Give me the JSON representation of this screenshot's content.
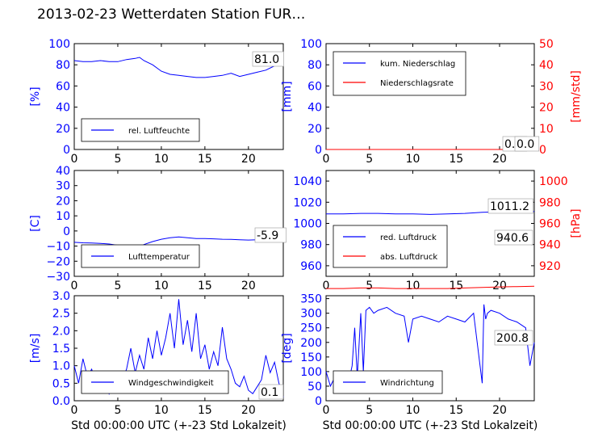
{
  "title": "2013-02-23 Wetterdaten Station FUR…",
  "colors": {
    "blue": "#0000ff",
    "red": "#ff0000",
    "black": "#000000"
  },
  "chart_data": [
    {
      "id": "humidity",
      "type": "line",
      "xlim": [
        0,
        24
      ],
      "xticks": [
        "0",
        "5",
        "10",
        "15",
        "20"
      ],
      "ylim": [
        0,
        100
      ],
      "yticks": [
        "0",
        "20",
        "40",
        "60",
        "80",
        "100"
      ],
      "ylabel": "[%]",
      "legend": [
        "rel. Luftfeuchte"
      ],
      "annotation": "81.0",
      "series": [
        {
          "name": "rel. Luftfeuchte",
          "color": "#0000ff",
          "x": [
            0,
            1,
            2,
            3,
            4,
            5,
            6,
            7,
            7.5,
            8,
            9,
            10,
            11,
            12,
            13,
            14,
            15,
            16,
            17,
            18,
            19,
            20,
            21,
            22,
            23,
            24
          ],
          "y": [
            84,
            83,
            83,
            84,
            83,
            83,
            85,
            86,
            87,
            84,
            80,
            74,
            71,
            70,
            69,
            68,
            68,
            69,
            70,
            72,
            69,
            71,
            73,
            75,
            79,
            81
          ]
        }
      ]
    },
    {
      "id": "precip",
      "type": "line",
      "xlim": [
        0,
        24
      ],
      "xticks": [
        "0",
        "5",
        "10",
        "15",
        "20"
      ],
      "ylim": [
        0,
        100
      ],
      "yticks": [
        "0",
        "20",
        "40",
        "60",
        "80",
        "100"
      ],
      "ylabel": "[mm]",
      "y2lim": [
        0,
        50
      ],
      "y2ticks": [
        "0",
        "10",
        "20",
        "30",
        "40",
        "50"
      ],
      "y2label": "[mm/std]",
      "legend": [
        "kum. Niederschlag",
        "Niederschlagsrate"
      ],
      "annotation": "0.0",
      "annotation2": "0.0",
      "series": [
        {
          "name": "kum. Niederschlag",
          "color": "#0000ff",
          "x": [
            0,
            24
          ],
          "y": [
            0,
            0
          ]
        },
        {
          "name": "Niederschlagsrate",
          "color": "#ff0000",
          "x": [
            0,
            24
          ],
          "y": [
            0,
            0
          ]
        }
      ]
    },
    {
      "id": "temperature",
      "type": "line",
      "xlim": [
        0,
        24
      ],
      "xticks": [
        "0",
        "5",
        "10",
        "15",
        "20"
      ],
      "ylim": [
        -30,
        40
      ],
      "yticks": [
        "−30",
        "−20",
        "−10",
        "0",
        "10",
        "20",
        "30",
        "40"
      ],
      "ylabel": "[C]",
      "legend": [
        "Lufttemperatur"
      ],
      "annotation": "-5.9",
      "series": [
        {
          "name": "Lufttemperatur",
          "color": "#0000ff",
          "x": [
            0,
            1,
            2,
            3,
            4,
            5,
            6,
            7,
            7.5,
            8,
            9,
            10,
            11,
            12,
            13,
            14,
            15,
            16,
            17,
            18,
            19,
            20,
            21,
            22,
            23,
            24
          ],
          "y": [
            -7.5,
            -7.8,
            -8.0,
            -8.2,
            -8.6,
            -9.5,
            -10.0,
            -10.2,
            -11.0,
            -9.0,
            -7.0,
            -5.5,
            -4.5,
            -4.0,
            -4.5,
            -5.0,
            -5.0,
            -5.2,
            -5.5,
            -5.6,
            -5.8,
            -6.0,
            -5.8,
            -6.0,
            -6.0,
            -5.9
          ]
        }
      ]
    },
    {
      "id": "pressure",
      "type": "line",
      "xlim": [
        0,
        24
      ],
      "xticks": [
        "0",
        "5",
        "10",
        "15",
        "20"
      ],
      "ylim": [
        950,
        1050
      ],
      "yticks": [
        "960",
        "980",
        "1000",
        "1020",
        "1040"
      ],
      "y2lim": [
        910,
        1010
      ],
      "y2ticks": [
        "920",
        "940",
        "960",
        "980",
        "1000"
      ],
      "y2label": "[hPa]",
      "legend": [
        "red. Luftdruck",
        "abs. Luftdruck"
      ],
      "annotation": "1011.2",
      "annotation2": "940.6",
      "series": [
        {
          "name": "red. Luftdruck",
          "color": "#0000ff",
          "x": [
            0,
            2,
            4,
            6,
            8,
            10,
            12,
            14,
            16,
            18,
            20,
            22,
            24
          ],
          "y": [
            1009,
            1009,
            1009.5,
            1009.5,
            1009,
            1009,
            1008.5,
            1009,
            1009.5,
            1010.5,
            1011,
            1011,
            1011.2
          ]
        },
        {
          "name": "abs. Luftdruck",
          "color": "#ff0000",
          "x": [
            0,
            2,
            4,
            6,
            8,
            10,
            12,
            14,
            16,
            18,
            20,
            22,
            24
          ],
          "y": [
            938.5,
            938.5,
            939,
            939,
            938.5,
            938.5,
            938.5,
            938.5,
            939,
            939.5,
            940,
            940.3,
            940.6
          ]
        }
      ]
    },
    {
      "id": "wind-speed",
      "type": "line",
      "xlim": [
        0,
        24
      ],
      "xticks": [
        "0",
        "5",
        "10",
        "15",
        "20"
      ],
      "ylim": [
        0,
        3
      ],
      "yticks": [
        "0.0",
        "0.5",
        "1.0",
        "1.5",
        "2.0",
        "2.5",
        "3.0"
      ],
      "ylabel": "[m/s]",
      "xlabel": "Std 00:00:00 UTC (+-23 Std Lokalzeit)",
      "legend": [
        "Windgeschwindigkeit"
      ],
      "annotation": "0.1",
      "series": [
        {
          "name": "Windgeschwindigkeit",
          "color": "#0000ff",
          "x": [
            0,
            0.5,
            1,
            1.5,
            2,
            2.5,
            3,
            3.5,
            4,
            4.5,
            5,
            5.5,
            6,
            6.5,
            7,
            7.5,
            8,
            8.5,
            9,
            9.5,
            10,
            10.5,
            11,
            11.5,
            12,
            12.5,
            13,
            13.5,
            14,
            14.5,
            15,
            15.5,
            16,
            16.5,
            17,
            17.5,
            18,
            18.5,
            19,
            19.5,
            20,
            20.5,
            21,
            21.5,
            22,
            22.5,
            23,
            23.5,
            24
          ],
          "y": [
            1.0,
            0.5,
            1.2,
            0.7,
            0.9,
            0.5,
            0.3,
            0.8,
            0.2,
            0.5,
            0.3,
            0.6,
            0.9,
            1.5,
            0.8,
            1.3,
            0.9,
            1.8,
            1.2,
            2.0,
            1.3,
            1.8,
            2.5,
            1.5,
            2.9,
            1.6,
            2.3,
            1.4,
            2.5,
            1.2,
            1.6,
            0.9,
            1.4,
            1.0,
            2.1,
            1.2,
            0.9,
            0.5,
            0.4,
            0.7,
            0.3,
            0.2,
            0.4,
            0.6,
            1.3,
            0.8,
            1.1,
            0.5,
            0.1
          ]
        }
      ]
    },
    {
      "id": "wind-direction",
      "type": "line",
      "xlim": [
        0,
        24
      ],
      "xticks": [
        "0",
        "5",
        "10",
        "15",
        "20"
      ],
      "ylim": [
        0,
        360
      ],
      "yticks": [
        "0",
        "50",
        "100",
        "150",
        "200",
        "250",
        "300",
        "350"
      ],
      "ylabel": "[deg]",
      "xlabel": "Std 00:00:00 UTC (+-23 Std Lokalzeit)",
      "legend": [
        "Windrichtung"
      ],
      "annotation": "200.8",
      "series": [
        {
          "name": "Windrichtung",
          "color": "#0000ff",
          "x": [
            0,
            0.5,
            1,
            1.5,
            2,
            2.5,
            3,
            3.3,
            3.6,
            4,
            4.3,
            4.6,
            5,
            5.5,
            6,
            7,
            8,
            9,
            9.5,
            10,
            11,
            12,
            13,
            14,
            15,
            16,
            17,
            18,
            18.2,
            18.4,
            18.6,
            19,
            20,
            21,
            22,
            23,
            23.5,
            24
          ],
          "y": [
            100,
            50,
            80,
            40,
            60,
            50,
            120,
            250,
            80,
            300,
            100,
            310,
            320,
            300,
            310,
            320,
            300,
            290,
            200,
            280,
            290,
            280,
            270,
            290,
            280,
            270,
            300,
            60,
            330,
            280,
            300,
            310,
            300,
            280,
            270,
            250,
            120,
            200
          ]
        }
      ]
    }
  ]
}
